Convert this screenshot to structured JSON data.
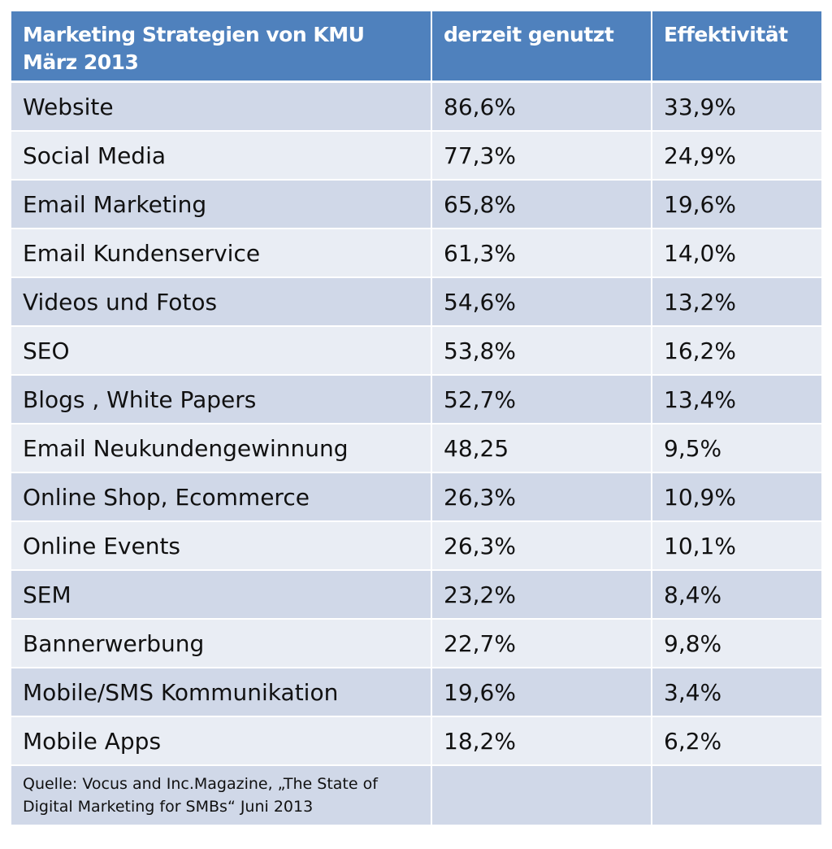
{
  "chart_data": {
    "type": "table",
    "columns": [
      "Marketing Strategien von KMU März 2013",
      "derzeit genutzt",
      "Effektivität"
    ],
    "header_lines": [
      "Marketing Strategien von KMU",
      "März 2013"
    ],
    "rows": [
      [
        "Website",
        "86,6%",
        "33,9%"
      ],
      [
        "Social Media",
        "77,3%",
        "24,9%"
      ],
      [
        "Email Marketing",
        "65,8%",
        "19,6%"
      ],
      [
        "Email Kundenservice",
        "61,3%",
        "14,0%"
      ],
      [
        "Videos und Fotos",
        "54,6%",
        "13,2%"
      ],
      [
        "SEO",
        "53,8%",
        "16,2%"
      ],
      [
        "Blogs , White Papers",
        "52,7%",
        "13,4%"
      ],
      [
        "Email Neukundengewinnung",
        "48,25",
        "9,5%"
      ],
      [
        "Online Shop, Ecommerce",
        "26,3%",
        "10,9%"
      ],
      [
        "Online Events",
        "26,3%",
        "10,1%"
      ],
      [
        "SEM",
        "23,2%",
        "8,4%"
      ],
      [
        "Bannerwerbung",
        "22,7%",
        "9,8%"
      ],
      [
        "Mobile/SMS Kommunikation",
        "19,6%",
        "3,4%"
      ],
      [
        "Mobile Apps",
        "18,2%",
        "6,2%"
      ]
    ],
    "source": "Quelle: Vocus and Inc.Magazine, „The State of Digital Marketing for SMBs“ Juni 2013"
  },
  "colors": {
    "header": "#4f81bd",
    "row_dark": "#d0d8e8",
    "row_light": "#e9edf4"
  }
}
